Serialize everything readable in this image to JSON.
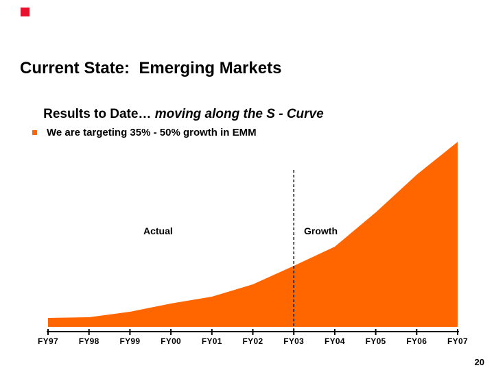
{
  "slide": {
    "accent_square_color": "#E8112D",
    "title": "Current State:  Emerging Markets",
    "subtitle_regular": "Results to Date… ",
    "subtitle_italic": "moving along the S - Curve",
    "bullet": {
      "marker_color": "#FF6600",
      "text": "We are targeting 35% - 50% growth in EMM"
    },
    "page_number": "20"
  },
  "chart_data": {
    "type": "area",
    "title": "",
    "xlabel": "",
    "ylabel": "",
    "y_axis": "unlabeled (no scale shown)",
    "x_labels": [
      "FY97",
      "FY98",
      "FY99",
      "FY00",
      "FY01",
      "FY02",
      "FY03",
      "FY04",
      "FY05",
      "FY06",
      "FY07"
    ],
    "values_relative": [
      13,
      14,
      22,
      34,
      44,
      62,
      89,
      117,
      167,
      222,
      270
    ],
    "fill_color": "#FF6600",
    "axis_color": "#000000",
    "legend": "none",
    "grid": "off",
    "annotations": [
      {
        "text": "Actual",
        "position": "left-of-divider"
      },
      {
        "text": "Growth",
        "position": "right-of-divider"
      }
    ],
    "divider": {
      "at_x_label": "FY03",
      "style": "dashed-vertical-line",
      "color": "#000000"
    }
  }
}
